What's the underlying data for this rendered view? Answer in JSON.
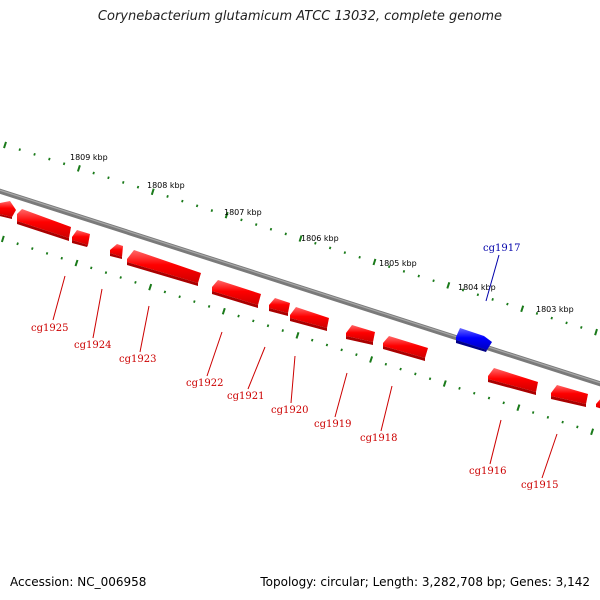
{
  "title": "Corynebacterium glutamicum ATCC 13032, complete genome",
  "footer": {
    "accession": "Accession: NC_006958",
    "summary": "Topology: circular; Length: 3,282,708 bp; Genes: 3,142"
  },
  "colors": {
    "backbone": "#808080",
    "reverse_gene": "#ff0000",
    "forward_gene": "#0000ff",
    "tick": "#1a7a1a",
    "reverse_label": "#cc0000",
    "forward_label": "#0000aa"
  },
  "kbp_ticks": [
    {
      "label": "1809 kbp"
    },
    {
      "label": "1808 kbp"
    },
    {
      "label": "1807 kbp"
    },
    {
      "label": "1806 kbp"
    },
    {
      "label": "1805 kbp"
    },
    {
      "label": "1804 kbp"
    },
    {
      "label": "1803 kbp"
    }
  ],
  "genes": [
    {
      "name": "cg1925",
      "strand": "reverse"
    },
    {
      "name": "cg1924",
      "strand": "reverse"
    },
    {
      "name": "cg1923",
      "strand": "reverse"
    },
    {
      "name": "cg1922",
      "strand": "reverse"
    },
    {
      "name": "cg1921",
      "strand": "reverse"
    },
    {
      "name": "cg1920",
      "strand": "reverse"
    },
    {
      "name": "cg1919",
      "strand": "reverse"
    },
    {
      "name": "cg1918",
      "strand": "reverse"
    },
    {
      "name": "cg1917",
      "strand": "forward"
    },
    {
      "name": "cg1916",
      "strand": "reverse"
    },
    {
      "name": "cg1915",
      "strand": "reverse"
    }
  ]
}
